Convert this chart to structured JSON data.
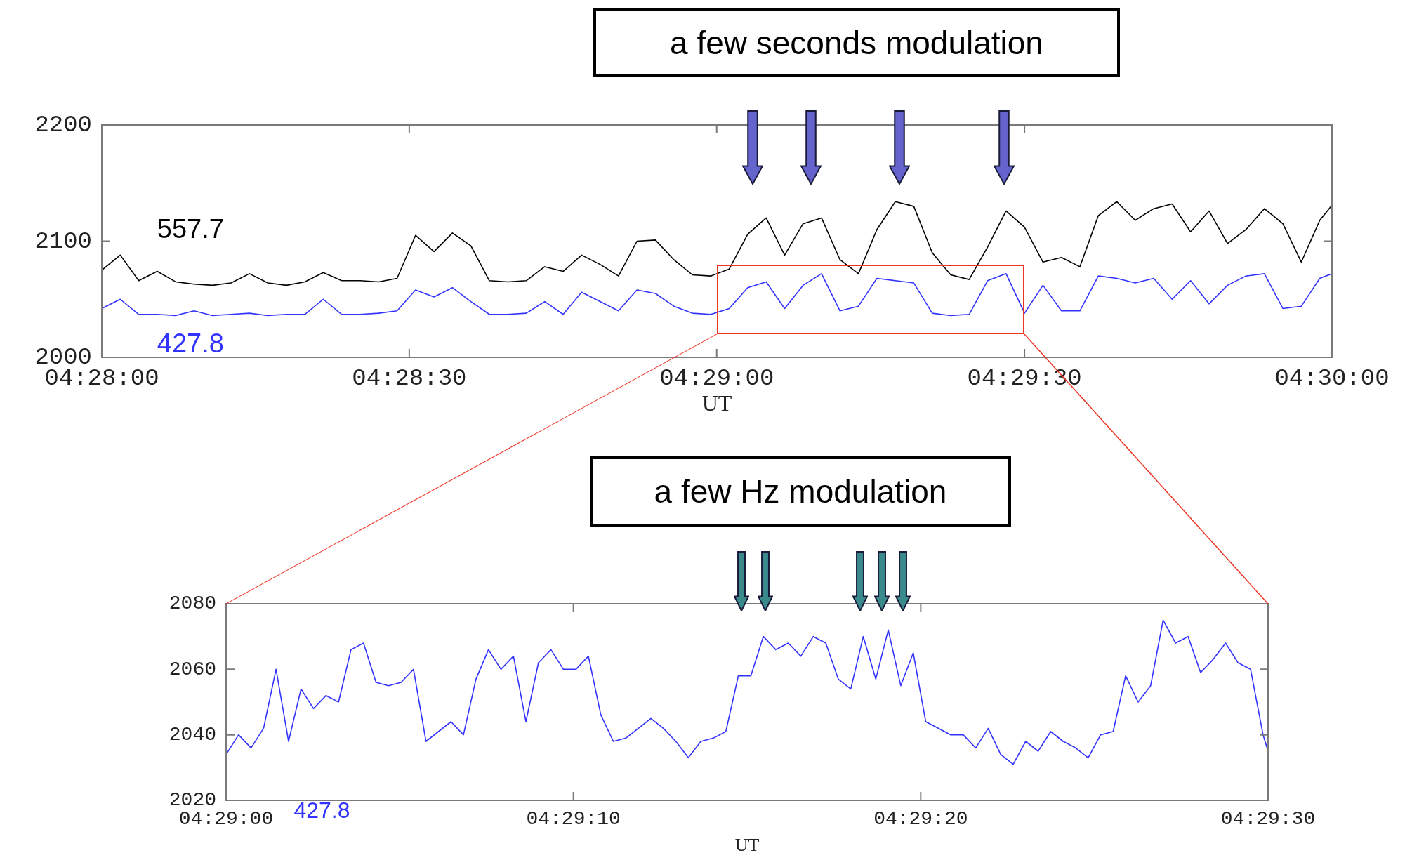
{
  "chart_data": [
    {
      "type": "line",
      "xlabel": "UT",
      "annotations": [
        "a few seconds modulation"
      ],
      "x": [
        4.46667,
        4.46717,
        4.46767,
        4.46817,
        4.46867,
        4.46917,
        4.46967,
        4.47017,
        4.47067,
        4.47117,
        4.47167,
        4.47217,
        4.47267,
        4.47317,
        4.47367,
        4.47417,
        4.47467,
        4.47517,
        4.47567,
        4.47617,
        4.47667,
        4.47717,
        4.47767,
        4.47817,
        4.47867,
        4.47917,
        4.47967,
        4.48017,
        4.48067,
        4.48117,
        4.48167,
        4.48217,
        4.48267,
        4.48317,
        4.48367,
        4.48417,
        4.48467,
        4.48517,
        4.48567,
        4.48617,
        4.48667,
        4.48717,
        4.48767,
        4.48817,
        4.48867,
        4.48917,
        4.48967,
        4.49017,
        4.49067,
        4.49117,
        4.49167,
        4.49217,
        4.49267,
        4.49317,
        4.49367,
        4.49417,
        4.49467,
        4.49517,
        4.49567,
        4.49617,
        4.49667,
        4.49717,
        4.49767,
        4.49817,
        4.49867,
        4.49917,
        4.49967,
        4.5
      ],
      "series": [
        {
          "name": "557.7",
          "color": "#000000",
          "values": [
            2075,
            2088,
            2066,
            2074,
            2065,
            2063,
            2062,
            2064,
            2072,
            2064,
            2062,
            2065,
            2073,
            2066,
            2066,
            2065,
            2068,
            2105,
            2091,
            2107,
            2096,
            2066,
            2065,
            2066,
            2078,
            2074,
            2088,
            2080,
            2070,
            2100,
            2101,
            2084,
            2071,
            2070,
            2076,
            2106,
            2120,
            2088,
            2115,
            2120,
            2084,
            2072,
            2110,
            2134,
            2130,
            2090,
            2071,
            2067,
            2095,
            2126,
            2112,
            2082,
            2086,
            2078,
            2122,
            2134,
            2118,
            2128,
            2132,
            2108,
            2126,
            2098,
            2110,
            2128,
            2115,
            2082,
            2118,
            2131
          ]
        },
        {
          "name": "427.8",
          "color": "#3333ff",
          "values": [
            2042,
            2050,
            2037,
            2037,
            2036,
            2040,
            2036,
            2037,
            2038,
            2036,
            2037,
            2037,
            2050,
            2037,
            2037,
            2038,
            2040,
            2058,
            2052,
            2060,
            2048,
            2037,
            2037,
            2038,
            2048,
            2037,
            2056,
            2048,
            2040,
            2058,
            2055,
            2044,
            2038,
            2037,
            2042,
            2060,
            2065,
            2042,
            2062,
            2072,
            2040,
            2044,
            2068,
            2066,
            2064,
            2038,
            2036,
            2037,
            2066,
            2072,
            2038,
            2062,
            2040,
            2040,
            2070,
            2068,
            2064,
            2068,
            2050,
            2066,
            2046,
            2062,
            2070,
            2072,
            2042,
            2044,
            2068,
            2072
          ]
        }
      ],
      "xlim": [
        4.46667,
        4.5
      ],
      "xticks": [
        {
          "value": 4.46667,
          "label": "04:28:00"
        },
        {
          "value": 4.475,
          "label": "04:28:30"
        },
        {
          "value": 4.48333,
          "label": "04:29:00"
        },
        {
          "value": 4.49167,
          "label": "04:29:30"
        },
        {
          "value": 4.5,
          "label": "04:30:00"
        }
      ],
      "ylim": [
        2000,
        2200
      ],
      "yticks": [
        2000,
        2100,
        2200
      ],
      "legend": false,
      "marker": "none",
      "line_style": "solid"
    },
    {
      "type": "line",
      "xlabel": "UT",
      "annotations": [
        "a few Hz modulation"
      ],
      "x": [
        4.48333,
        4.48343,
        4.48353,
        4.48363,
        4.48373,
        4.48383,
        4.48393,
        4.48403,
        4.48413,
        4.48423,
        4.48433,
        4.48443,
        4.48453,
        4.48463,
        4.48473,
        4.48483,
        4.48493,
        4.48503,
        4.48513,
        4.48523,
        4.48533,
        4.48543,
        4.48553,
        4.48563,
        4.48573,
        4.48583,
        4.48593,
        4.48603,
        4.48613,
        4.48623,
        4.48633,
        4.48643,
        4.48653,
        4.48663,
        4.48673,
        4.48683,
        4.48693,
        4.48703,
        4.48713,
        4.48723,
        4.48733,
        4.48743,
        4.48753,
        4.48763,
        4.48773,
        4.48783,
        4.48793,
        4.48803,
        4.48813,
        4.48823,
        4.48833,
        4.48843,
        4.48853,
        4.48863,
        4.48873,
        4.48883,
        4.48893,
        4.48903,
        4.48913,
        4.48923,
        4.48933,
        4.48943,
        4.48953,
        4.48963,
        4.48973,
        4.48983,
        4.48993,
        4.49003,
        4.49013,
        4.49023,
        4.49033,
        4.49043,
        4.49053,
        4.49063,
        4.49073,
        4.49083,
        4.49093,
        4.49103,
        4.49113,
        4.49123,
        4.49133,
        4.49143,
        4.49153,
        4.49163,
        4.49167
      ],
      "series": [
        {
          "name": "427.8",
          "color": "#3333ff",
          "values": [
            2034,
            2040,
            2036,
            2042,
            2060,
            2038,
            2054,
            2048,
            2052,
            2050,
            2066,
            2068,
            2056,
            2055,
            2056,
            2060,
            2038,
            2041,
            2044,
            2040,
            2057,
            2066,
            2060,
            2064,
            2044,
            2062,
            2066,
            2060,
            2060,
            2064,
            2046,
            2038,
            2039,
            2042,
            2045,
            2042,
            2038,
            2033,
            2038,
            2039,
            2041,
            2058,
            2058,
            2070,
            2066,
            2068,
            2064,
            2070,
            2068,
            2057,
            2054,
            2070,
            2057,
            2072,
            2055,
            2065,
            2044,
            2042,
            2040,
            2040,
            2036,
            2042,
            2034,
            2031,
            2038,
            2035,
            2041,
            2038,
            2036,
            2033,
            2040,
            2041,
            2058,
            2050,
            2055,
            2075,
            2068,
            2070,
            2059,
            2063,
            2068,
            2062,
            2060,
            2040,
            2035
          ]
        }
      ],
      "xlim": [
        4.48333,
        4.49167
      ],
      "xticks": [
        {
          "value": 4.48333,
          "label": "04:29:00"
        },
        {
          "value": 4.48611,
          "label": "04:29:10"
        },
        {
          "value": 4.48889,
          "label": "04:29:20"
        },
        {
          "value": 4.49167,
          "label": "04:29:30"
        }
      ],
      "ylim": [
        2020,
        2080
      ],
      "yticks": [
        2020,
        2040,
        2060,
        2080
      ],
      "legend": false,
      "marker": "none",
      "line_style": "solid"
    }
  ]
}
